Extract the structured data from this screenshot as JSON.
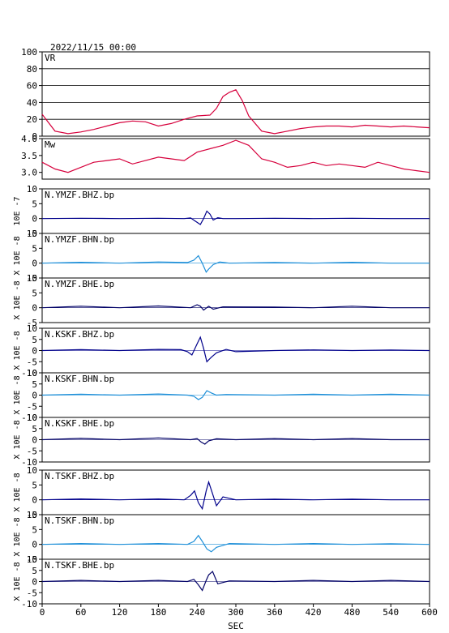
{
  "chart_data": {
    "type": "line",
    "title": "2022/11/15 00:00",
    "xlabel": "SEC",
    "xlim": [
      0,
      600
    ],
    "xticks": [
      "0",
      "60",
      "120",
      "180",
      "240",
      "300",
      "360",
      "420",
      "480",
      "540",
      "600"
    ],
    "panels": [
      {
        "id": "vr",
        "label": "VR",
        "ylim": [
          0,
          100
        ],
        "yticks": [
          "100",
          "80",
          "60",
          "40",
          "20",
          "0"
        ],
        "color": "#d6003c",
        "grid": true,
        "x": [
          0,
          20,
          40,
          60,
          80,
          100,
          120,
          140,
          160,
          180,
          200,
          220,
          240,
          260,
          270,
          280,
          290,
          300,
          310,
          320,
          340,
          360,
          380,
          400,
          420,
          440,
          460,
          480,
          500,
          520,
          540,
          560,
          580,
          600
        ],
        "y": [
          26,
          6,
          3,
          5,
          8,
          12,
          16,
          18,
          17,
          12,
          15,
          20,
          24,
          25,
          33,
          47,
          52,
          55,
          42,
          24,
          6,
          3,
          6,
          9,
          11,
          12,
          12,
          11,
          13,
          12,
          11,
          12,
          11,
          10
        ]
      },
      {
        "id": "mw",
        "label": "Mw",
        "ylim": [
          2.8,
          4.0
        ],
        "yticks": [
          "4.0",
          "3.5",
          "3.0"
        ],
        "color": "#d6003c",
        "grid": false,
        "x": [
          0,
          20,
          40,
          60,
          80,
          100,
          120,
          140,
          160,
          180,
          200,
          220,
          240,
          260,
          280,
          300,
          320,
          340,
          360,
          380,
          400,
          420,
          440,
          460,
          480,
          500,
          520,
          540,
          560,
          580,
          600
        ],
        "y": [
          3.3,
          3.1,
          3.0,
          3.15,
          3.3,
          3.35,
          3.4,
          3.25,
          3.35,
          3.45,
          3.4,
          3.35,
          3.6,
          3.7,
          3.8,
          3.95,
          3.8,
          3.4,
          3.3,
          3.15,
          3.2,
          3.3,
          3.2,
          3.25,
          3.2,
          3.15,
          3.3,
          3.2,
          3.1,
          3.05,
          3.0
        ]
      },
      {
        "id": "ymzf-bhz",
        "label": "N.YMZF.BHZ.bp",
        "unit": "10E -7",
        "ylim": [
          -5,
          10
        ],
        "yticks": [
          "10",
          "5",
          "0",
          "-5"
        ],
        "color": "#00008b",
        "grid": false,
        "x": [
          0,
          60,
          120,
          180,
          220,
          230,
          238,
          245,
          250,
          255,
          260,
          265,
          272,
          280,
          300,
          360,
          420,
          480,
          540,
          600
        ],
        "y": [
          0,
          0.1,
          0,
          0.1,
          0,
          0.2,
          -1.0,
          -2.0,
          0,
          2.5,
          1.5,
          -0.5,
          0.3,
          0,
          0,
          0.1,
          0,
          0.1,
          0,
          0
        ]
      },
      {
        "id": "ymzf-bhn",
        "label": "N.YMZF.BHN.bp",
        "unit": "X 10E -8",
        "ylim": [
          -5,
          10
        ],
        "yticks": [
          "10",
          "5",
          "0",
          "-5"
        ],
        "color": "#1e8fd8",
        "grid": false,
        "x": [
          0,
          60,
          120,
          180,
          225,
          235,
          242,
          248,
          254,
          258,
          265,
          275,
          290,
          360,
          420,
          480,
          540,
          600
        ],
        "y": [
          0,
          0.3,
          0,
          0.4,
          0.2,
          1.0,
          2.5,
          0,
          -3.0,
          -2.0,
          -0.5,
          0.4,
          0,
          0.2,
          0,
          0.3,
          0,
          0
        ]
      },
      {
        "id": "ymzf-bhe",
        "label": "N.YMZF.BHE.bp",
        "unit": "X 10E -8",
        "ylim": [
          -5,
          10
        ],
        "yticks": [
          "10",
          "5",
          "0",
          "-5"
        ],
        "color": "#000066",
        "grid": false,
        "x": [
          0,
          60,
          120,
          180,
          230,
          240,
          245,
          250,
          258,
          265,
          280,
          360,
          420,
          480,
          540,
          600
        ],
        "y": [
          0,
          0.5,
          0,
          0.6,
          0,
          1.0,
          0.5,
          -0.8,
          0.5,
          -0.5,
          0.3,
          0.2,
          0,
          0.5,
          0,
          0
        ]
      },
      {
        "id": "kskf-bhz",
        "label": "N.KSKF.BHZ.bp",
        "unit": "X 10E -8",
        "ylim": [
          -10,
          10
        ],
        "yticks": [
          "10",
          "5",
          "0",
          "-5",
          "-10"
        ],
        "color": "#00008b",
        "grid": false,
        "x": [
          0,
          60,
          120,
          180,
          215,
          225,
          232,
          240,
          245,
          250,
          255,
          262,
          270,
          285,
          300,
          360,
          420,
          480,
          540,
          600
        ],
        "y": [
          0,
          0.4,
          0,
          0.5,
          0.4,
          -0.5,
          -2,
          3,
          6,
          1,
          -5,
          -3,
          -1,
          0.5,
          -0.5,
          0,
          0.3,
          0,
          0.2,
          0
        ]
      },
      {
        "id": "kskf-bhn",
        "label": "N.KSKF.BHN.bp",
        "unit": "X 10E -8",
        "ylim": [
          -10,
          10
        ],
        "yticks": [
          "10",
          "5",
          "0",
          "-5",
          "-10"
        ],
        "color": "#1e8fd8",
        "grid": false,
        "x": [
          0,
          60,
          120,
          180,
          225,
          235,
          242,
          248,
          255,
          262,
          270,
          285,
          360,
          420,
          480,
          540,
          600
        ],
        "y": [
          0,
          0.4,
          0,
          0.5,
          0,
          -0.5,
          -2,
          -1,
          2,
          1,
          0,
          0.3,
          0,
          0.4,
          0,
          0.4,
          0
        ]
      },
      {
        "id": "kskf-bhe",
        "label": "N.KSKF.BHE.bp",
        "unit": "X 10E -8",
        "ylim": [
          -10,
          10
        ],
        "yticks": [
          "10",
          "5",
          "0",
          "-5",
          "-10"
        ],
        "color": "#000066",
        "grid": false,
        "x": [
          0,
          60,
          120,
          180,
          230,
          240,
          246,
          252,
          258,
          270,
          300,
          360,
          420,
          480,
          540,
          600
        ],
        "y": [
          0,
          0.6,
          0,
          0.8,
          0,
          0.5,
          -1,
          -2,
          -0.5,
          0.4,
          0,
          0.5,
          0,
          0.5,
          0,
          0
        ]
      },
      {
        "id": "tskf-bhz",
        "label": "N.TSKF.BHZ.bp",
        "unit": "X 10E -8",
        "ylim": [
          -5,
          10
        ],
        "yticks": [
          "10",
          "5",
          "0",
          "-5"
        ],
        "color": "#00008b",
        "grid": false,
        "x": [
          0,
          60,
          120,
          180,
          220,
          230,
          236,
          242,
          248,
          254,
          258,
          264,
          270,
          280,
          300,
          360,
          420,
          480,
          540,
          600
        ],
        "y": [
          0,
          0.3,
          0,
          0.3,
          0,
          1.5,
          3,
          -1,
          -3,
          3,
          6,
          2,
          -2,
          1,
          0,
          0.2,
          0,
          0.2,
          0,
          0
        ]
      },
      {
        "id": "tskf-bhn",
        "label": "N.TSKF.BHN.bp",
        "unit": "X 10E -8",
        "ylim": [
          -5,
          10
        ],
        "yticks": [
          "10",
          "5",
          "0",
          "-5"
        ],
        "color": "#1e8fd8",
        "grid": false,
        "x": [
          0,
          60,
          120,
          180,
          225,
          235,
          242,
          248,
          255,
          262,
          270,
          290,
          360,
          420,
          480,
          540,
          600
        ],
        "y": [
          0,
          0.3,
          0,
          0.3,
          0,
          1,
          3,
          1,
          -1.5,
          -2.5,
          -1,
          0.3,
          0,
          0.3,
          0,
          0.2,
          0
        ]
      },
      {
        "id": "tskf-bhe",
        "label": "N.TSKF.BHE.bp",
        "unit": "X 10E -8",
        "ylim": [
          -10,
          10
        ],
        "yticks": [
          "10",
          "5",
          "0",
          "-5",
          "-10"
        ],
        "color": "#000066",
        "grid": false,
        "x": [
          0,
          60,
          120,
          180,
          225,
          235,
          242,
          248,
          254,
          258,
          264,
          272,
          290,
          360,
          420,
          480,
          540,
          600
        ],
        "y": [
          0,
          0.5,
          0,
          0.5,
          0,
          1,
          -1.5,
          -4,
          0.5,
          3,
          4.5,
          -1,
          0.3,
          0,
          0.5,
          0,
          0.5,
          0
        ]
      }
    ]
  }
}
